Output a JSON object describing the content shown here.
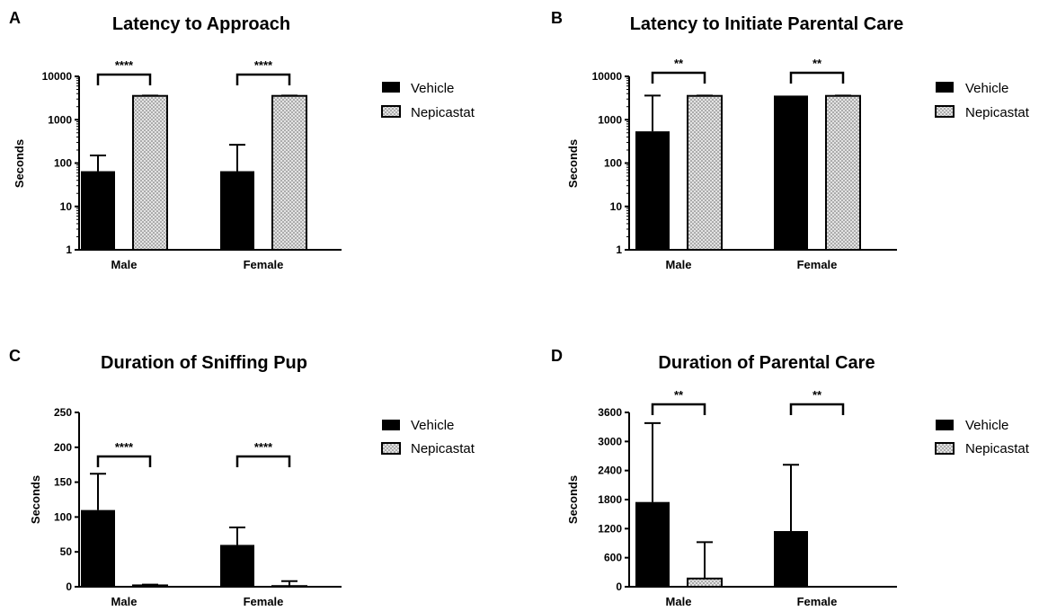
{
  "legend": {
    "vehicle": "Vehicle",
    "nepicastat": "Nepicastat"
  },
  "colors": {
    "vehicle": "#000000",
    "nepicastat_fill": "#d9d9d9",
    "axis": "#000000"
  },
  "chart_data": [
    {
      "panel": "A",
      "type": "bar",
      "title": "Latency to Approach",
      "ylabel": "Seconds",
      "yscale": "log",
      "ylim": [
        1,
        10000
      ],
      "yticks": [
        1,
        10,
        100,
        1000,
        10000
      ],
      "ytick_labels": [
        "1",
        "10",
        "100",
        "1000",
        "10000"
      ],
      "categories": [
        "Male",
        "Female"
      ],
      "series": [
        {
          "name": "Vehicle",
          "values": [
            65,
            65
          ],
          "err_upper": [
            150,
            265
          ]
        },
        {
          "name": "Nepicastat",
          "values": [
            3550,
            3550
          ],
          "err_upper": [
            3600,
            3600
          ]
        }
      ],
      "significance": [
        "****",
        "****"
      ],
      "legend_position": "right"
    },
    {
      "panel": "B",
      "type": "bar",
      "title": "Latency to Initiate Parental Care",
      "ylabel": "Seconds",
      "yscale": "log",
      "ylim": [
        1,
        10000
      ],
      "yticks": [
        1,
        10,
        100,
        1000,
        10000
      ],
      "ytick_labels": [
        "1",
        "10",
        "100",
        "1000",
        "10000"
      ],
      "categories": [
        "Male",
        "Female"
      ],
      "series": [
        {
          "name": "Vehicle",
          "values": [
            540,
            3600
          ],
          "err_upper": [
            3600,
            3600
          ]
        },
        {
          "name": "Nepicastat",
          "values": [
            3550,
            3550
          ],
          "err_upper": [
            3600,
            3600
          ]
        }
      ],
      "significance": [
        "**",
        "**"
      ],
      "legend_position": "right"
    },
    {
      "panel": "C",
      "type": "bar",
      "title": "Duration of Sniffing Pup",
      "ylabel": "Seconds",
      "yscale": "linear",
      "ylim": [
        0,
        250
      ],
      "yticks": [
        0,
        50,
        100,
        150,
        200,
        250
      ],
      "ytick_labels": [
        "0",
        "50",
        "100",
        "150",
        "200",
        "250"
      ],
      "categories": [
        "Male",
        "Female"
      ],
      "series": [
        {
          "name": "Vehicle",
          "values": [
            110,
            60
          ],
          "err_upper": [
            162,
            85
          ]
        },
        {
          "name": "Nepicastat",
          "values": [
            2,
            1
          ],
          "err_upper": [
            3,
            8
          ]
        }
      ],
      "significance": [
        "****",
        "****"
      ],
      "legend_position": "right"
    },
    {
      "panel": "D",
      "type": "bar",
      "title": "Duration of Parental Care",
      "ylabel": "Seconds",
      "yscale": "linear",
      "ylim": [
        0,
        3600
      ],
      "yticks": [
        0,
        600,
        1200,
        1800,
        2400,
        3000,
        3600
      ],
      "ytick_labels": [
        "0",
        "600",
        "1200",
        "1800",
        "2400",
        "3000",
        "3600"
      ],
      "categories": [
        "Male",
        "Female"
      ],
      "series": [
        {
          "name": "Vehicle",
          "values": [
            1750,
            1150
          ],
          "err_upper": [
            3380,
            2520
          ]
        },
        {
          "name": "Nepicastat",
          "values": [
            170,
            0
          ],
          "err_upper": [
            920,
            0
          ]
        }
      ],
      "significance": [
        "**",
        "**"
      ],
      "legend_position": "right"
    }
  ]
}
